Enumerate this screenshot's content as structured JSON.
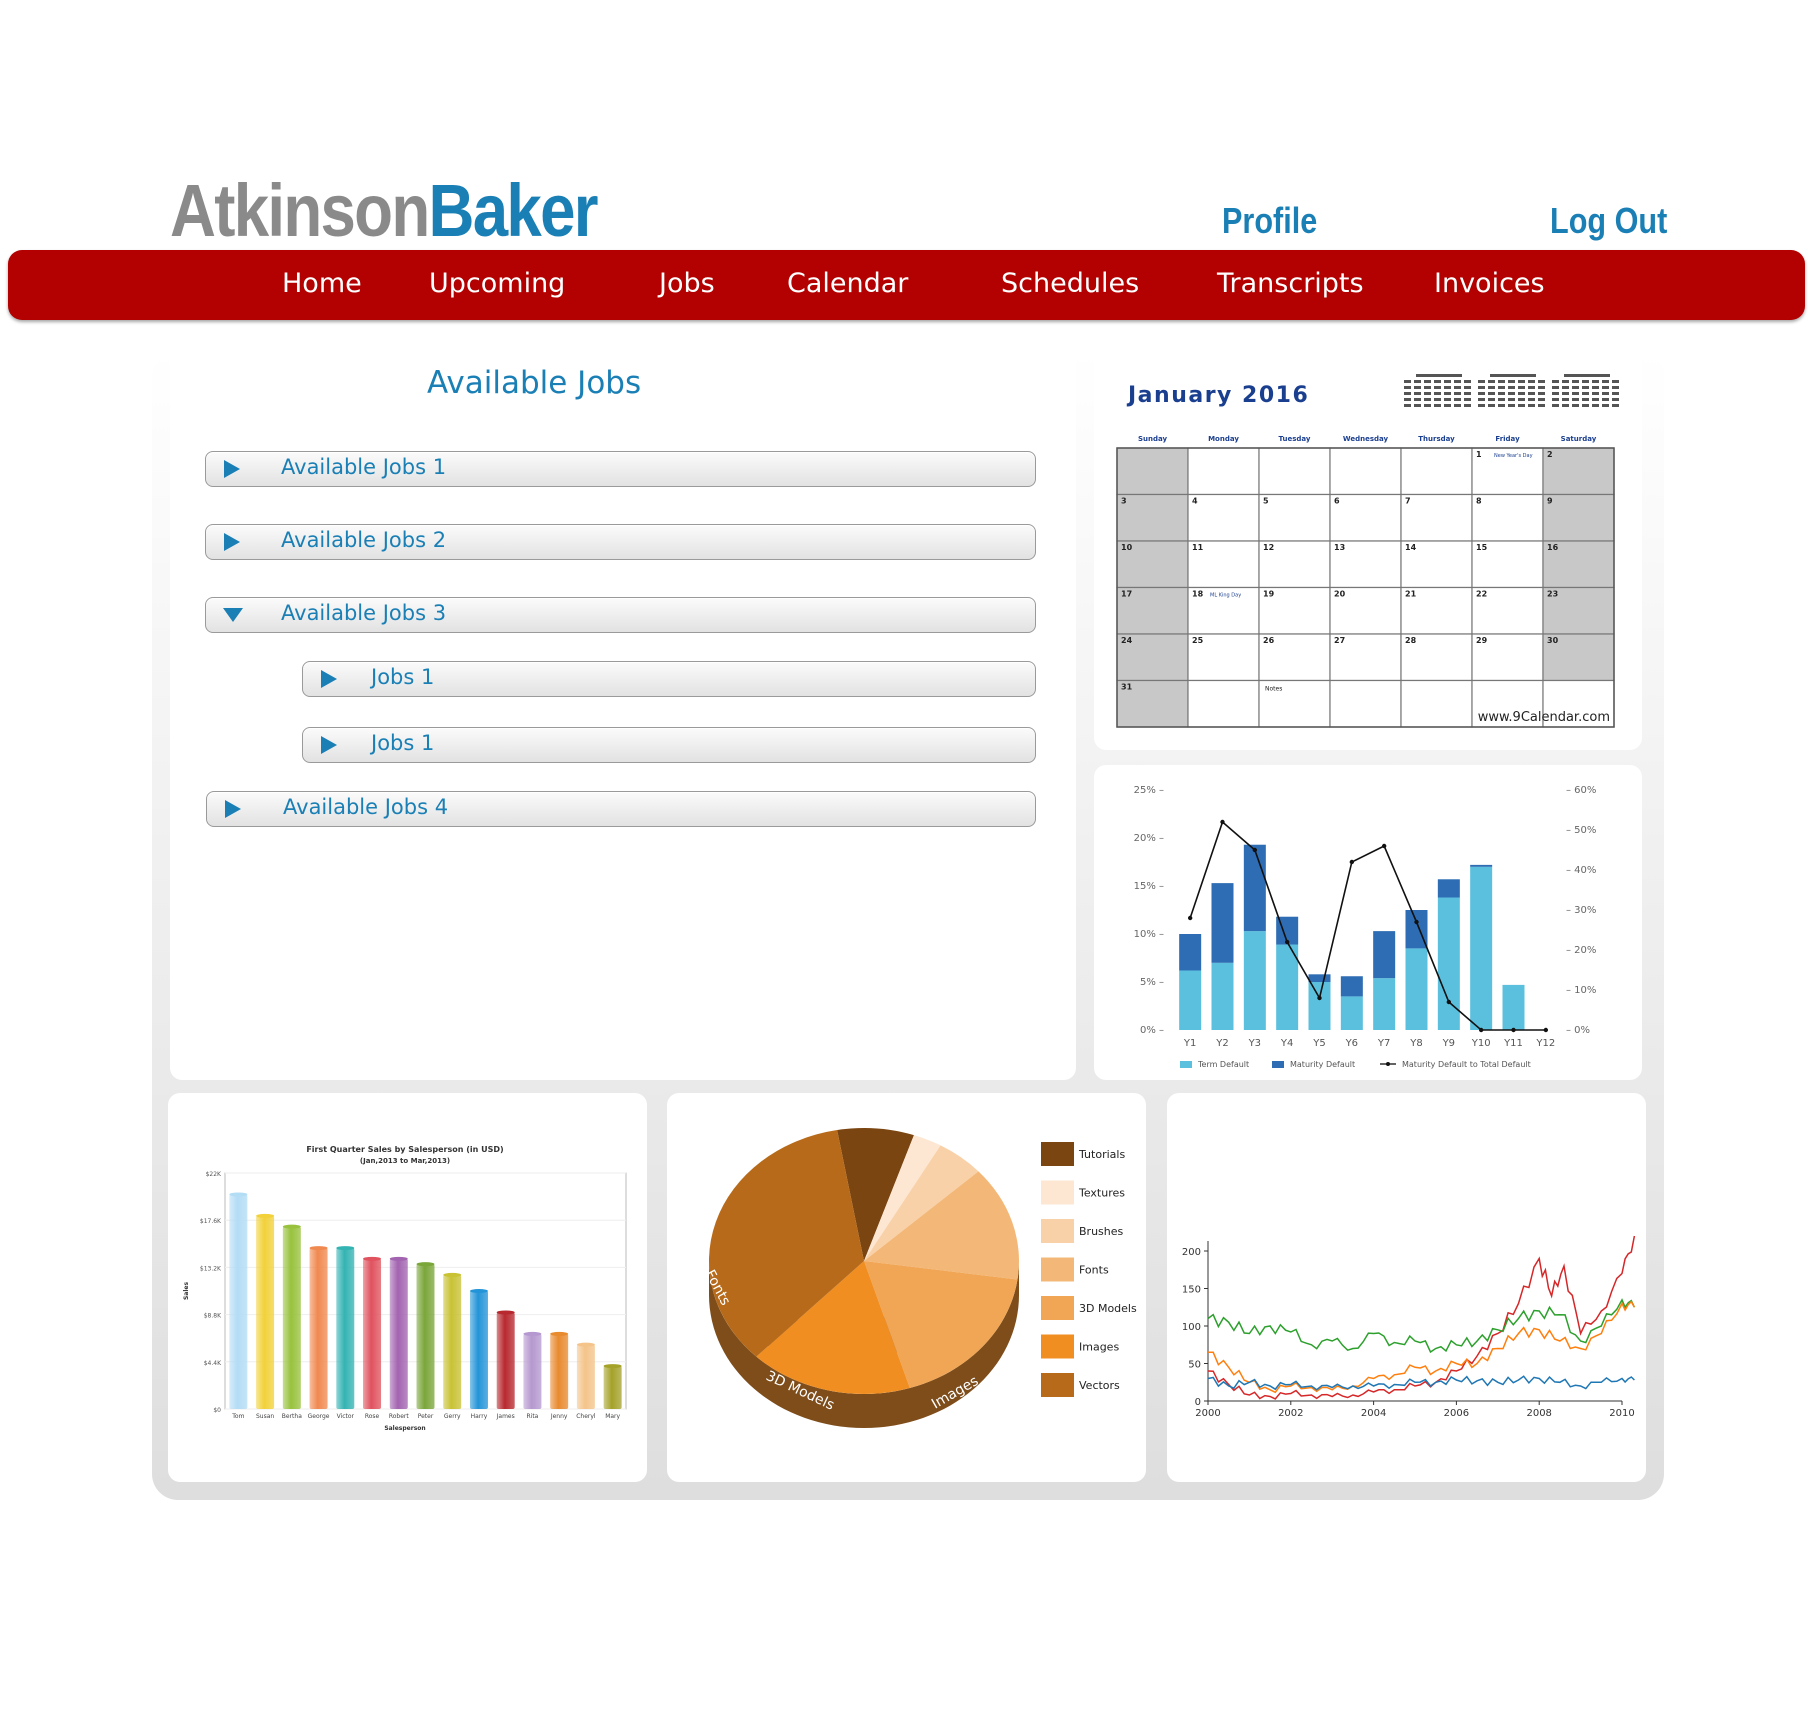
{
  "header": {
    "logo_part1": "Atkinson",
    "logo_part2": "Baker",
    "profile": "Profile",
    "logout": "Log Out"
  },
  "nav": [
    "Home",
    "Upcoming",
    "Jobs",
    "Calendar",
    "Schedules",
    "Transcripts",
    "Invoices"
  ],
  "available_jobs": {
    "title": "Available Jobs",
    "items": [
      {
        "label": "Available Jobs 1",
        "expanded": false
      },
      {
        "label": "Available Jobs 2",
        "expanded": false
      },
      {
        "label": "Available Jobs 3",
        "expanded": true,
        "children": [
          {
            "label": "Jobs 1"
          },
          {
            "label": "Jobs 1"
          }
        ]
      },
      {
        "label": "Available Jobs 4",
        "expanded": false
      }
    ]
  },
  "calendar": {
    "title": "January  2016",
    "weekdays": [
      "Sunday",
      "Monday",
      "Tuesday",
      "Wednesday",
      "Thursday",
      "Friday",
      "Saturday"
    ],
    "first_weekday_index": 5,
    "days_in_month": 31,
    "events": [
      {
        "day": 1,
        "text": "New Year's Day"
      },
      {
        "day": 18,
        "text": "ML King Day"
      }
    ],
    "notes_label": "Notes",
    "footer": "www.9Calendar.com"
  },
  "chart_data": [
    {
      "type": "bar",
      "stacked": true,
      "categories": [
        "Y1",
        "Y2",
        "Y3",
        "Y4",
        "Y5",
        "Y6",
        "Y7",
        "Y8",
        "Y9",
        "Y10",
        "Y11",
        "Y12"
      ],
      "series": [
        {
          "name": "Term Default",
          "color": "#5bc0de",
          "values": [
            6.2,
            7.0,
            10.3,
            8.9,
            5.0,
            3.5,
            5.4,
            8.5,
            13.8,
            17.0,
            4.7,
            0
          ]
        },
        {
          "name": "Maturity Default",
          "color": "#2e6db3",
          "values": [
            3.8,
            8.3,
            9.0,
            2.9,
            0.8,
            2.1,
            4.9,
            4.0,
            1.9,
            0.2,
            0,
            0
          ]
        },
        {
          "name": "Maturity Default to Total Default",
          "type": "line",
          "axis": "right",
          "color": "#111111",
          "values": [
            28,
            52,
            45,
            22,
            8,
            42,
            46,
            27,
            7,
            0,
            0,
            0
          ]
        }
      ],
      "ylim_left": [
        0,
        25
      ],
      "ylim_right": [
        0,
        60
      ],
      "left_ticks": [
        "0%",
        "5%",
        "10%",
        "15%",
        "20%",
        "25%"
      ],
      "right_ticks": [
        "0%",
        "10%",
        "20%",
        "30%",
        "40%",
        "50%",
        "60%"
      ],
      "legend_position": "bottom"
    },
    {
      "type": "bar",
      "title": "First Quarter Sales by Salesperson (in USD)",
      "subtitle": "(Jan,2013 to Mar,2013)",
      "xlabel": "Salesperson",
      "ylabel": "Sales",
      "categories": [
        "Tom",
        "Susan",
        "Bertha",
        "George",
        "Victor",
        "Rose",
        "Robert",
        "Peter",
        "Gerry",
        "Harry",
        "James",
        "Rita",
        "Jenny",
        "Cheryl",
        "Mary"
      ],
      "values": [
        20000,
        18000,
        17000,
        15000,
        15000,
        14000,
        14000,
        13500,
        12500,
        11000,
        9000,
        7000,
        7000,
        6000,
        4000
      ],
      "colors": [
        "#b3dcf5",
        "#f2d13a",
        "#98c23d",
        "#f0894f",
        "#34b3b3",
        "#e0525e",
        "#a264b0",
        "#7aa63a",
        "#c8c234",
        "#2494d8",
        "#b8292f",
        "#b598cf",
        "#e88a2e",
        "#f4c48a",
        "#a5a22a"
      ],
      "ylim": [
        0,
        22000
      ],
      "y_ticks": [
        "$0",
        "$4.4K",
        "$8.8K",
        "$13.2K",
        "$17.6K",
        "$22K"
      ]
    },
    {
      "type": "pie",
      "slices": [
        {
          "label": "Tutorials",
          "value": 8,
          "color": "#7a4510"
        },
        {
          "label": "Textures",
          "value": 3,
          "color": "#fde7d2"
        },
        {
          "label": "Brushes",
          "value": 5,
          "color": "#f9d1a8"
        },
        {
          "label": "Fonts",
          "value": 14,
          "color": "#f3b878"
        },
        {
          "label": "3D Models",
          "value": 18,
          "color": "#f0a655"
        },
        {
          "label": "Images",
          "value": 17,
          "color": "#f08e22"
        },
        {
          "label": "Vectors",
          "value": 35,
          "color": "#b76b1a"
        }
      ],
      "edge_labels": [
        "Fonts",
        "3D Models",
        "Images"
      ]
    },
    {
      "type": "line",
      "x_ticks": [
        "2000",
        "2002",
        "2004",
        "2006",
        "2008",
        "2010"
      ],
      "y_ticks": [
        "0",
        "50",
        "100",
        "150",
        "200"
      ],
      "ylim": [
        0,
        200
      ],
      "xlim": [
        2000,
        2010
      ],
      "series": [
        {
          "color": "#d62728",
          "points": [
            [
              2000,
              40
            ],
            [
              2000.5,
              22
            ],
            [
              2001,
              8
            ],
            [
              2001.5,
              6
            ],
            [
              2002,
              10
            ],
            [
              2002.5,
              8
            ],
            [
              2003,
              6
            ],
            [
              2003.5,
              8
            ],
            [
              2004,
              12
            ],
            [
              2004.5,
              15
            ],
            [
              2005,
              20
            ],
            [
              2005.5,
              25
            ],
            [
              2006,
              40
            ],
            [
              2006.5,
              60
            ],
            [
              2007,
              90
            ],
            [
              2007.5,
              130
            ],
            [
              2008,
              190
            ],
            [
              2008.3,
              140
            ],
            [
              2008.6,
              180
            ],
            [
              2009,
              90
            ],
            [
              2009.5,
              120
            ],
            [
              2010,
              170
            ],
            [
              2010.3,
              220
            ]
          ]
        },
        {
          "color": "#2ca02c",
          "points": [
            [
              2000,
              110
            ],
            [
              2000.5,
              105
            ],
            [
              2001,
              90
            ],
            [
              2001.5,
              100
            ],
            [
              2002,
              92
            ],
            [
              2002.5,
              75
            ],
            [
              2003,
              80
            ],
            [
              2003.5,
              70
            ],
            [
              2004,
              90
            ],
            [
              2004.5,
              78
            ],
            [
              2005,
              80
            ],
            [
              2005.5,
              70
            ],
            [
              2006,
              75
            ],
            [
              2006.5,
              80
            ],
            [
              2007,
              95
            ],
            [
              2007.5,
              110
            ],
            [
              2008,
              120
            ],
            [
              2008.5,
              115
            ],
            [
              2009,
              80
            ],
            [
              2009.5,
              100
            ],
            [
              2010,
              135
            ],
            [
              2010.3,
              125
            ]
          ]
        },
        {
          "color": "#ff7f0e",
          "points": [
            [
              2000,
              65
            ],
            [
              2000.5,
              45
            ],
            [
              2001,
              25
            ],
            [
              2001.5,
              15
            ],
            [
              2002,
              20
            ],
            [
              2002.5,
              18
            ],
            [
              2003,
              15
            ],
            [
              2003.5,
              20
            ],
            [
              2004,
              30
            ],
            [
              2004.5,
              35
            ],
            [
              2005,
              45
            ],
            [
              2005.5,
              40
            ],
            [
              2006,
              50
            ],
            [
              2006.5,
              50
            ],
            [
              2007,
              70
            ],
            [
              2007.5,
              90
            ],
            [
              2008,
              95
            ],
            [
              2008.5,
              80
            ],
            [
              2009,
              70
            ],
            [
              2009.5,
              90
            ],
            [
              2010,
              130
            ],
            [
              2010.3,
              125
            ]
          ]
        },
        {
          "color": "#1f77b4",
          "points": [
            [
              2000,
              30
            ],
            [
              2000.5,
              20
            ],
            [
              2001,
              25
            ],
            [
              2001.5,
              20
            ],
            [
              2002,
              22
            ],
            [
              2002.5,
              20
            ],
            [
              2003,
              18
            ],
            [
              2003.5,
              20
            ],
            [
              2004,
              20
            ],
            [
              2004.5,
              22
            ],
            [
              2005,
              25
            ],
            [
              2005.5,
              25
            ],
            [
              2006,
              28
            ],
            [
              2006.5,
              27
            ],
            [
              2007,
              25
            ],
            [
              2007.5,
              28
            ],
            [
              2008,
              30
            ],
            [
              2008.5,
              25
            ],
            [
              2009,
              20
            ],
            [
              2009.5,
              25
            ],
            [
              2010,
              30
            ],
            [
              2010.3,
              28
            ]
          ]
        }
      ]
    }
  ]
}
